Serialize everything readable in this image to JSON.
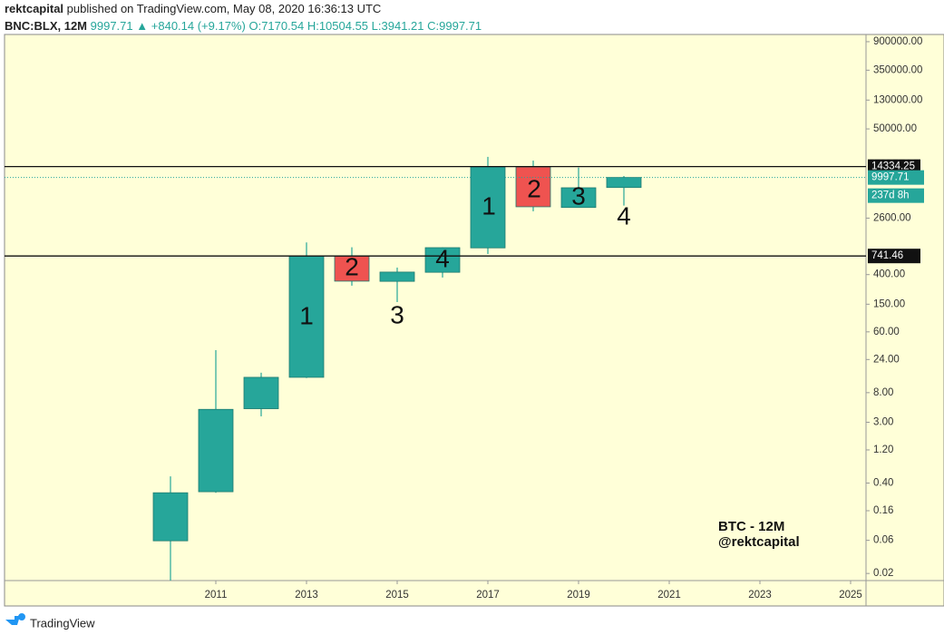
{
  "header": {
    "publisher": "rektcapital",
    "published": "published on TradingView.com, May 08, 2020 16:36:13 UTC",
    "symbol": "BNC:BLX, 12M",
    "last": "9997.71",
    "change": "+840.14 (+9.17%)",
    "ohlc": [
      "O:7170.54",
      "H:10504.55",
      "L:3941.21",
      "C:9997.71"
    ]
  },
  "footer": {
    "brand": "TradingView"
  },
  "chart_data": {
    "type": "candlestick",
    "log_scale": true,
    "x": [
      2010,
      2011,
      2012,
      2013,
      2014,
      2015,
      2016,
      2017,
      2018,
      2019,
      2020
    ],
    "open": [
      0.059,
      0.3,
      4.7,
      13.3,
      740,
      320,
      432,
      970,
      14200,
      3700,
      7170.54
    ],
    "high": [
      0.5,
      32.7,
      15.5,
      1160,
      990,
      505,
      990,
      19800,
      17500,
      13900,
      10504.55
    ],
    "low": [
      0.01,
      0.29,
      3.65,
      13.0,
      277,
      161,
      363,
      792,
      3260,
      3700,
      3941.21
    ],
    "close": [
      0.29,
      4.6,
      13.3,
      746,
      322,
      435,
      977,
      14200,
      3785,
      7110,
      9997.71
    ],
    "up_color": "#26a69a",
    "down_color": "#ef5350",
    "xlim": [
      2006.34,
      2025.34
    ],
    "xticks": [
      2011,
      2013,
      2015,
      2017,
      2019,
      2021,
      2023,
      2025
    ],
    "ylim": [
      0.0158,
      1143000
    ],
    "yticks": [
      {
        "value": 900000,
        "label": "900000.00"
      },
      {
        "value": 350000,
        "label": "350000.00"
      },
      {
        "value": 130000,
        "label": "130000.00"
      },
      {
        "value": 50000,
        "label": "50000.00"
      },
      {
        "value": 2600,
        "label": "2600.00"
      },
      {
        "value": 400,
        "label": "400.00"
      },
      {
        "value": 150,
        "label": "150.00"
      },
      {
        "value": 60,
        "label": "60.00"
      },
      {
        "value": 24,
        "label": "24.00"
      },
      {
        "value": 8,
        "label": "8.00"
      },
      {
        "value": 3,
        "label": "3.00"
      },
      {
        "value": 1.2,
        "label": "1.20"
      },
      {
        "value": 0.4,
        "label": "0.40"
      },
      {
        "value": 0.16,
        "label": "0.16"
      },
      {
        "value": 0.06,
        "label": "0.06"
      },
      {
        "value": 0.02,
        "label": "0.02"
      }
    ],
    "levels": [
      14334.25,
      741.46
    ],
    "last_price": 9997.71,
    "countdown": "237d 8h",
    "annotations": [
      "1",
      "2",
      "3",
      "4",
      "1",
      "2",
      "3",
      "4"
    ],
    "watermark": [
      "BTC - 12M",
      "@rektcapital"
    ]
  }
}
